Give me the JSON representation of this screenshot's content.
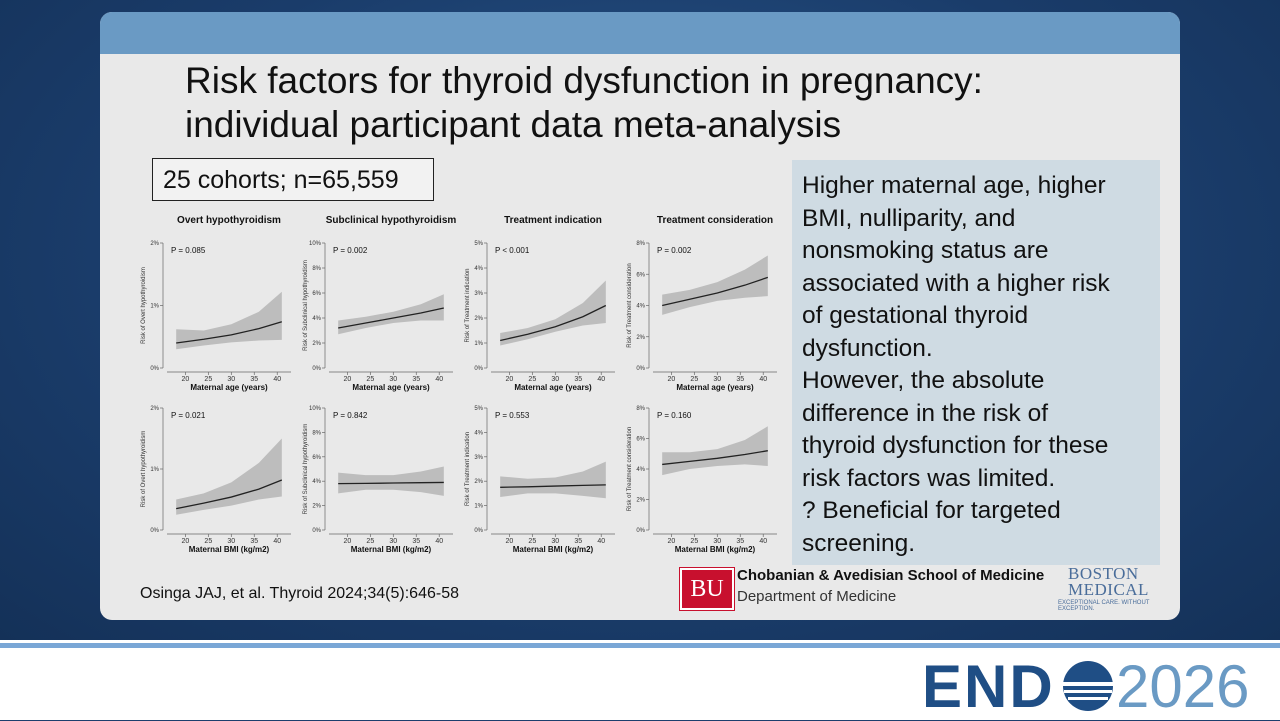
{
  "slide": {
    "title": [
      "Risk factors for thyroid dysfunction in pregnancy:",
      "individual participant data meta-analysis"
    ],
    "cohort_box": "25 cohorts; n=65,559",
    "summary": [
      "Higher maternal age, higher",
      "BMI, nulliparity, and",
      "nonsmoking status are",
      "associated with a higher risk",
      "of gestational thyroid",
      "dysfunction.",
      "However, the absolute",
      "difference in the risk of",
      "thyroid dysfunction for these",
      "risk factors was limited.",
      "? Beneficial for targeted",
      "screening."
    ],
    "citation": "Osinga JAJ, et al. Thyroid 2024;34(5):646-58",
    "bu_logo": "BU",
    "school": "Chobanian & Avedisian School of Medicine",
    "department": "Department of Medicine",
    "hospital": [
      "BOSTON",
      "MEDICAL"
    ],
    "hospital_tagline": "EXCEPTIONAL CARE. WITHOUT EXCEPTION.",
    "event": {
      "left": "END",
      "year": "2026"
    }
  },
  "chart_data": [
    {
      "type": "line",
      "title": "Overt hypothyroidism",
      "annotation": "P = 0.085",
      "xlabel": "Maternal age (years)",
      "ylabel": "Risk of Overt hypothyroidism",
      "x": [
        18,
        24,
        30,
        36,
        41
      ],
      "values": [
        0.4,
        0.46,
        0.53,
        0.63,
        0.74
      ],
      "ci_lower": [
        0.3,
        0.36,
        0.41,
        0.44,
        0.45
      ],
      "ci_upper": [
        0.62,
        0.6,
        0.7,
        0.9,
        1.22
      ],
      "xlim": [
        16,
        43
      ],
      "xticks": [
        20,
        25,
        30,
        35,
        40
      ],
      "ylim": [
        0,
        2
      ],
      "yticks": [
        {
          "value": 0,
          "label": "0%"
        },
        {
          "value": 1,
          "label": "1%"
        },
        {
          "value": 2,
          "label": "2%"
        }
      ],
      "color": "#222222",
      "band_color": "#bdbdbd"
    },
    {
      "type": "line",
      "title": "Subclinical hypothyroidism",
      "annotation": "P = 0.002",
      "xlabel": "Maternal age (years)",
      "ylabel": "Risk of Subclinical hypothyroidism",
      "x": [
        18,
        24,
        30,
        36,
        41
      ],
      "values": [
        3.2,
        3.6,
        4.0,
        4.4,
        4.8
      ],
      "ci_lower": [
        2.7,
        3.2,
        3.6,
        3.8,
        3.8
      ],
      "ci_upper": [
        3.8,
        4.1,
        4.5,
        5.1,
        5.9
      ],
      "xlim": [
        16,
        43
      ],
      "xticks": [
        20,
        25,
        30,
        35,
        40
      ],
      "ylim": [
        0,
        10
      ],
      "yticks": [
        {
          "value": 0,
          "label": "0%"
        },
        {
          "value": 2,
          "label": "2%"
        },
        {
          "value": 4,
          "label": "4%"
        },
        {
          "value": 6,
          "label": "6%"
        },
        {
          "value": 8,
          "label": "8%"
        },
        {
          "value": 10,
          "label": "10%"
        }
      ],
      "color": "#222222",
      "band_color": "#bdbdbd"
    },
    {
      "type": "line",
      "title": "Treatment indication",
      "annotation": "P < 0.001",
      "xlabel": "Maternal age (years)",
      "ylabel": "Risk of Treatment indication",
      "x": [
        18,
        24,
        30,
        36,
        41
      ],
      "values": [
        1.1,
        1.35,
        1.65,
        2.05,
        2.5
      ],
      "ci_lower": [
        0.9,
        1.15,
        1.45,
        1.7,
        1.8
      ],
      "ci_upper": [
        1.4,
        1.6,
        1.95,
        2.6,
        3.5
      ],
      "xlim": [
        16,
        43
      ],
      "xticks": [
        20,
        25,
        30,
        35,
        40
      ],
      "ylim": [
        0,
        5
      ],
      "yticks": [
        {
          "value": 0,
          "label": "0%"
        },
        {
          "value": 1,
          "label": "1%"
        },
        {
          "value": 2,
          "label": "2%"
        },
        {
          "value": 3,
          "label": "3%"
        },
        {
          "value": 4,
          "label": "4%"
        },
        {
          "value": 5,
          "label": "5%"
        }
      ],
      "color": "#222222",
      "band_color": "#bdbdbd"
    },
    {
      "type": "line",
      "title": "Treatment consideration",
      "annotation": "P = 0.002",
      "xlabel": "Maternal age (years)",
      "ylabel": "Risk of Treatment consideration",
      "x": [
        18,
        24,
        30,
        36,
        41
      ],
      "values": [
        4.0,
        4.4,
        4.8,
        5.3,
        5.8
      ],
      "ci_lower": [
        3.4,
        3.9,
        4.3,
        4.5,
        4.6
      ],
      "ci_upper": [
        4.7,
        5.0,
        5.5,
        6.3,
        7.2
      ],
      "xlim": [
        16,
        43
      ],
      "xticks": [
        20,
        25,
        30,
        35,
        40
      ],
      "ylim": [
        0,
        8
      ],
      "yticks": [
        {
          "value": 0,
          "label": "0%"
        },
        {
          "value": 2,
          "label": "2%"
        },
        {
          "value": 4,
          "label": "4%"
        },
        {
          "value": 6,
          "label": "6%"
        },
        {
          "value": 8,
          "label": "8%"
        }
      ],
      "color": "#222222",
      "band_color": "#bdbdbd"
    },
    {
      "type": "line",
      "annotation": "P = 0.021",
      "xlabel": "Maternal BMI (kg/m2)",
      "ylabel": "Risk of Overt hypothyroidism",
      "x": [
        18,
        24,
        30,
        36,
        41
      ],
      "values": [
        0.35,
        0.44,
        0.54,
        0.67,
        0.82
      ],
      "ci_lower": [
        0.25,
        0.33,
        0.4,
        0.5,
        0.55
      ],
      "ci_upper": [
        0.5,
        0.6,
        0.78,
        1.1,
        1.5
      ],
      "xlim": [
        16,
        43
      ],
      "xticks": [
        20,
        25,
        30,
        35,
        40
      ],
      "ylim": [
        0,
        2
      ],
      "yticks": [
        {
          "value": 0,
          "label": "0%"
        },
        {
          "value": 1,
          "label": "1%"
        },
        {
          "value": 2,
          "label": "2%"
        }
      ],
      "color": "#222222",
      "band_color": "#bdbdbd"
    },
    {
      "type": "line",
      "annotation": "P = 0.842",
      "xlabel": "Maternal BMI (kg/m2)",
      "ylabel": "Risk of Subclinical hypothyroidism",
      "x": [
        18,
        24,
        30,
        36,
        41
      ],
      "values": [
        3.8,
        3.82,
        3.85,
        3.88,
        3.9
      ],
      "ci_lower": [
        3.0,
        3.3,
        3.3,
        3.1,
        2.8
      ],
      "ci_upper": [
        4.7,
        4.5,
        4.5,
        4.8,
        5.2
      ],
      "xlim": [
        16,
        43
      ],
      "xticks": [
        20,
        25,
        30,
        35,
        40
      ],
      "ylim": [
        0,
        10
      ],
      "yticks": [
        {
          "value": 0,
          "label": "0%"
        },
        {
          "value": 2,
          "label": "2%"
        },
        {
          "value": 4,
          "label": "4%"
        },
        {
          "value": 6,
          "label": "6%"
        },
        {
          "value": 8,
          "label": "8%"
        },
        {
          "value": 10,
          "label": "10%"
        }
      ],
      "color": "#222222",
      "band_color": "#bdbdbd"
    },
    {
      "type": "line",
      "annotation": "P = 0.553",
      "xlabel": "Maternal BMI (kg/m2)",
      "ylabel": "Risk of Treatment indication",
      "x": [
        18,
        24,
        30,
        36,
        41
      ],
      "values": [
        1.75,
        1.77,
        1.8,
        1.83,
        1.85
      ],
      "ci_lower": [
        1.35,
        1.5,
        1.5,
        1.4,
        1.3
      ],
      "ci_upper": [
        2.2,
        2.1,
        2.15,
        2.4,
        2.8
      ],
      "xlim": [
        16,
        43
      ],
      "xticks": [
        20,
        25,
        30,
        35,
        40
      ],
      "ylim": [
        0,
        5
      ],
      "yticks": [
        {
          "value": 0,
          "label": "0%"
        },
        {
          "value": 1,
          "label": "1%"
        },
        {
          "value": 2,
          "label": "2%"
        },
        {
          "value": 3,
          "label": "3%"
        },
        {
          "value": 4,
          "label": "4%"
        },
        {
          "value": 5,
          "label": "5%"
        }
      ],
      "color": "#222222",
      "band_color": "#bdbdbd"
    },
    {
      "type": "line",
      "annotation": "P = 0.160",
      "xlabel": "Maternal BMI (kg/m2)",
      "ylabel": "Risk of Treatment consideration",
      "x": [
        18,
        24,
        30,
        36,
        41
      ],
      "values": [
        4.3,
        4.5,
        4.7,
        4.95,
        5.2
      ],
      "ci_lower": [
        3.6,
        4.0,
        4.2,
        4.3,
        4.2
      ],
      "ci_upper": [
        5.1,
        5.1,
        5.3,
        5.9,
        6.8
      ],
      "xlim": [
        16,
        43
      ],
      "xticks": [
        20,
        25,
        30,
        35,
        40
      ],
      "ylim": [
        0,
        8
      ],
      "yticks": [
        {
          "value": 0,
          "label": "0%"
        },
        {
          "value": 2,
          "label": "2%"
        },
        {
          "value": 4,
          "label": "4%"
        },
        {
          "value": 6,
          "label": "6%"
        },
        {
          "value": 8,
          "label": "8%"
        }
      ],
      "color": "#222222",
      "band_color": "#bdbdbd"
    }
  ]
}
